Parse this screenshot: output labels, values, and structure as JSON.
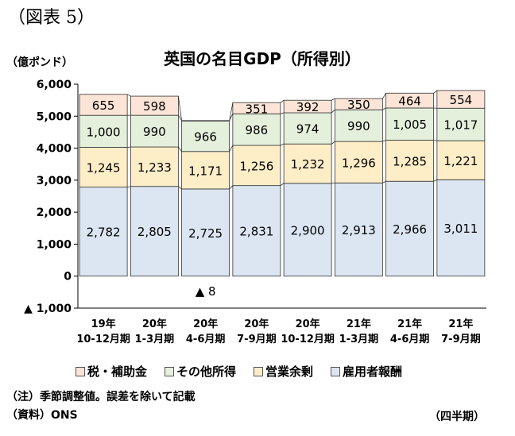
{
  "figure_label": "（図表 5）",
  "chart_data": {
    "type": "bar",
    "stacked": true,
    "title": "英国の名目GDP（所得別）",
    "ylabel": "（億ポンド）",
    "xlabel": "（四半期）",
    "ylim": [
      -1000,
      6000
    ],
    "yticks": [
      -1000,
      0,
      1000,
      2000,
      3000,
      4000,
      5000,
      6000
    ],
    "ytick_labels": [
      "▲ 1,000",
      "0",
      "1,000",
      "2,000",
      "3,000",
      "4,000",
      "5,000",
      "6,000"
    ],
    "grid": false,
    "legend_position": "bottom",
    "categories": [
      [
        "19年",
        "10-12月期"
      ],
      [
        "20年",
        "1-3月期"
      ],
      [
        "20年",
        "4-6月期"
      ],
      [
        "20年",
        "7-9月期"
      ],
      [
        "20年",
        "10-12月期"
      ],
      [
        "21年",
        "1-3月期"
      ],
      [
        "21年",
        "4-6月期"
      ],
      [
        "21年",
        "7-9月期"
      ]
    ],
    "series": [
      {
        "name": "雇用者報酬",
        "color": "#dce6f2",
        "values": [
          2782,
          2805,
          2725,
          2831,
          2900,
          2913,
          2966,
          3011
        ],
        "labels": [
          "2,782",
          "2,805",
          "2,725",
          "2,831",
          "2,900",
          "2,913",
          "2,966",
          "3,011"
        ]
      },
      {
        "name": "営業余剰",
        "color": "#fdeec8",
        "values": [
          1245,
          1233,
          1171,
          1256,
          1232,
          1296,
          1285,
          1221
        ],
        "labels": [
          "1,245",
          "1,233",
          "1,171",
          "1,256",
          "1,232",
          "1,296",
          "1,285",
          "1,221"
        ]
      },
      {
        "name": "その他所得",
        "color": "#e4f0dc",
        "values": [
          1000,
          990,
          966,
          986,
          974,
          990,
          1005,
          1017
        ],
        "labels": [
          "1,000",
          "990",
          "966",
          "986",
          "974",
          "990",
          "1,005",
          "1,017"
        ]
      },
      {
        "name": "税・補助金",
        "color": "#fce4d6",
        "values": [
          655,
          598,
          -8,
          351,
          392,
          350,
          464,
          554
        ],
        "labels": [
          "655",
          "598",
          "▲ 8",
          "351",
          "392",
          "350",
          "464",
          "554"
        ]
      }
    ]
  },
  "legend": [
    {
      "name": "税・補助金",
      "color": "#fce4d6"
    },
    {
      "name": "その他所得",
      "color": "#e4f0dc"
    },
    {
      "name": "営業余剰",
      "color": "#fdeec8"
    },
    {
      "name": "雇用者報酬",
      "color": "#dce6f2"
    }
  ],
  "note": "（注）季節調整値。誤差を除いて記載",
  "source": "（資料）ONS"
}
